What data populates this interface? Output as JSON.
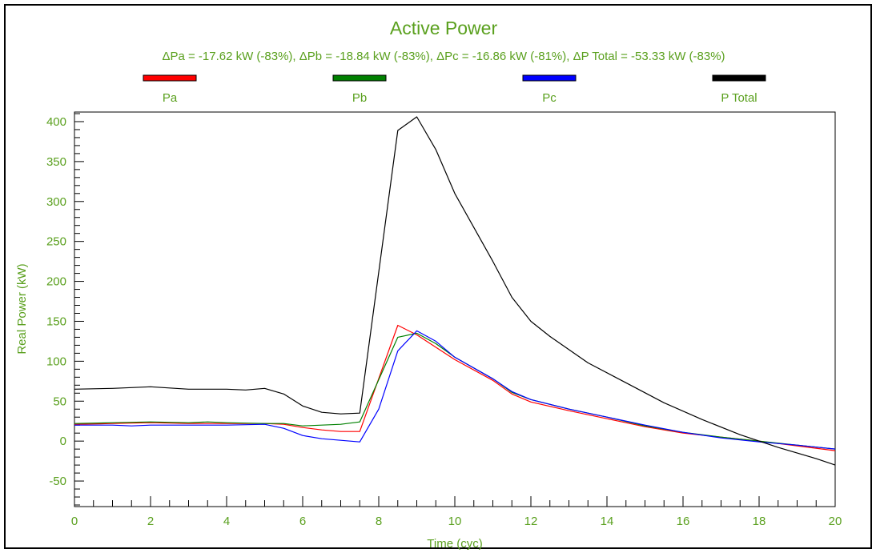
{
  "chart_data": {
    "type": "line",
    "title": "Active Power",
    "subtitle": "ΔPa = -17.62 kW (-83%), ΔPb = -18.84 kW (-83%), ΔPc = -16.86 kW (-81%), ΔP Total = -53.33 kW (-83%)",
    "xlabel": "Time (cyc)",
    "ylabel": "Real Power (kW)",
    "xlim": [
      0,
      20
    ],
    "ylim": [
      -82,
      412
    ],
    "x_ticks": [
      "0",
      "2",
      "4",
      "6",
      "8",
      "10",
      "12",
      "14",
      "16",
      "18",
      "20"
    ],
    "y_ticks": [
      "-50",
      "0",
      "50",
      "100",
      "150",
      "200",
      "250",
      "300",
      "350",
      "400"
    ],
    "grid": false,
    "legend_position": "top",
    "colors": {
      "axis_text": "#5aa01e",
      "Pa": "#ff0000",
      "Pb": "#008000",
      "Pc": "#0000ff",
      "P Total": "#000000"
    },
    "series": [
      {
        "name": "Pa",
        "x": [
          0,
          1,
          2,
          3,
          4,
          5,
          5.5,
          6,
          6.5,
          7,
          7.5,
          8.5,
          9,
          10,
          11,
          11.5,
          12,
          13,
          14,
          15,
          16,
          17,
          18,
          19,
          20
        ],
        "y": [
          21,
          22,
          23,
          22,
          22,
          22,
          21,
          17,
          14,
          12,
          12,
          145,
          133,
          102,
          76,
          59,
          49,
          38,
          28,
          18,
          10,
          5,
          0,
          -6,
          -12
        ]
      },
      {
        "name": "Pb",
        "x": [
          0,
          1,
          2,
          3,
          3.5,
          4,
          5,
          5.5,
          6,
          6.5,
          7,
          7.5,
          8.5,
          9,
          9.5,
          10,
          11,
          11.5,
          12,
          13,
          14,
          15,
          16,
          17,
          18,
          19,
          20
        ],
        "y": [
          22,
          23,
          24,
          23,
          24,
          23,
          22,
          22,
          19,
          20,
          21,
          24,
          130,
          135,
          122,
          105,
          78,
          61,
          52,
          40,
          30,
          19,
          11,
          5,
          0,
          -5,
          -10
        ]
      },
      {
        "name": "Pc",
        "x": [
          0,
          1,
          1.5,
          2,
          3,
          4,
          5,
          5.5,
          6,
          6.5,
          7,
          7.5,
          8,
          8.5,
          9,
          9.5,
          10,
          11,
          11.5,
          12,
          13,
          14,
          15,
          16,
          17,
          18,
          19,
          20
        ],
        "y": [
          20,
          20,
          19,
          20,
          20,
          20,
          21,
          16,
          7,
          3,
          1,
          -1,
          40,
          113,
          138,
          125,
          105,
          78,
          62,
          52,
          40,
          30,
          20,
          11,
          4,
          -1,
          -5,
          -10
        ]
      },
      {
        "name": "P Total",
        "x": [
          0,
          1,
          2,
          3,
          4,
          4.5,
          5,
          5.5,
          6,
          6.5,
          7,
          7.5,
          8.5,
          9,
          9.5,
          10,
          11,
          11.5,
          12,
          12.5,
          13.5,
          14.5,
          15.5,
          16.5,
          17.5,
          18.5,
          19.5,
          20
        ],
        "y": [
          65,
          66,
          68,
          65,
          65,
          64,
          66,
          59,
          44,
          36,
          34,
          35,
          389,
          406,
          365,
          310,
          225,
          180,
          150,
          131,
          98,
          73,
          48,
          27,
          8,
          -8,
          -22,
          -30
        ]
      }
    ]
  }
}
